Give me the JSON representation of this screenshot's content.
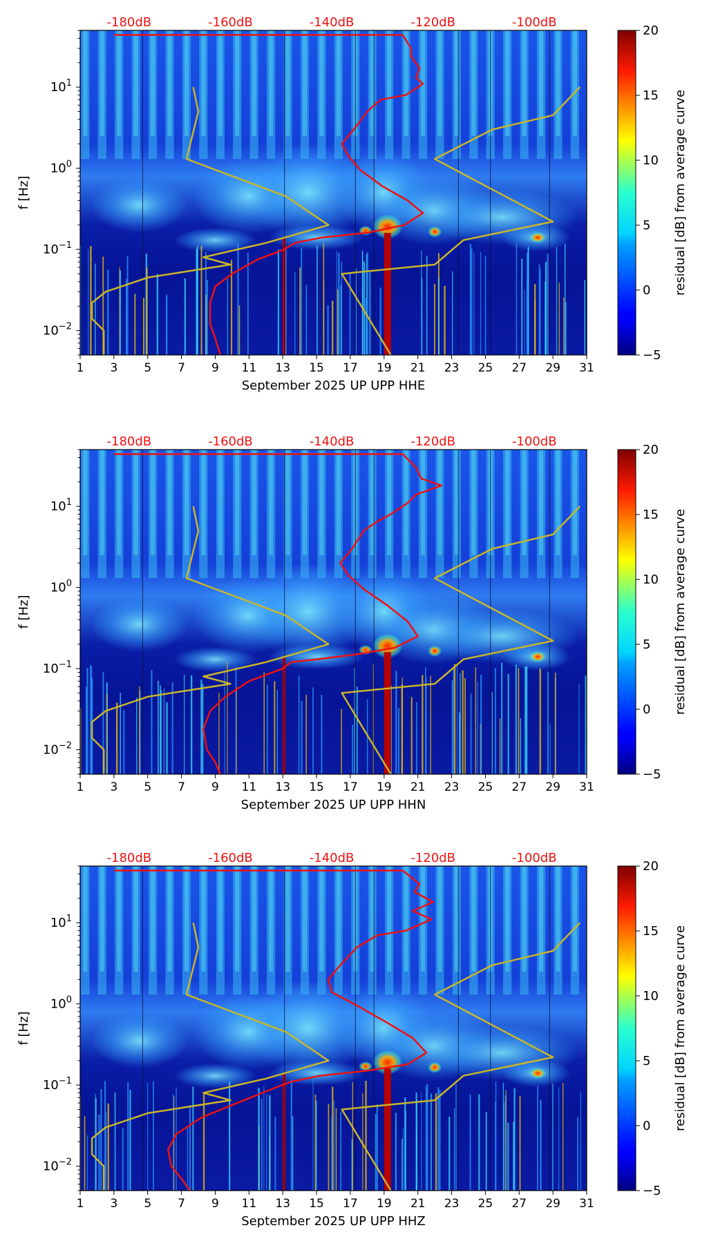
{
  "chart_data": [
    {
      "type": "heatmap",
      "title": "",
      "xlabel": "September 2025 UP UPP  HHE",
      "ylabel": "f [Hz]",
      "x_ticks": [
        1,
        3,
        5,
        7,
        9,
        11,
        13,
        15,
        17,
        19,
        21,
        23,
        25,
        27,
        29,
        31
      ],
      "xlim": [
        1,
        31
      ],
      "ylim_hz": [
        0.005,
        50
      ],
      "y_ticks": [
        {
          "value": 0.01,
          "base": "10",
          "exp": "−2"
        },
        {
          "value": 0.1,
          "base": "10",
          "exp": "−1"
        },
        {
          "value": 1,
          "base": "10",
          "exp": "0"
        },
        {
          "value": 10,
          "base": "10",
          "exp": "1"
        }
      ],
      "top_axis_labels": [
        {
          "label": "-180dB",
          "x": 3.9
        },
        {
          "label": "-160dB",
          "x": 9.9
        },
        {
          "label": "-140dB",
          "x": 15.9
        },
        {
          "label": "-120dB",
          "x": 21.9
        },
        {
          "label": "-100dB",
          "x": 27.9
        }
      ],
      "colorbar": {
        "label": "residual [dB] from average curve",
        "min": -5,
        "max": 20,
        "ticks": [
          -5,
          0,
          5,
          10,
          15,
          20
        ]
      },
      "series": [
        {
          "name": "mean PSD (red)",
          "color": "#ee1111",
          "x": [
            20.1,
            20.6,
            20.6,
            21.1,
            20.9,
            21.3,
            20.3,
            18.8,
            18.0,
            17.2,
            16.5,
            16.9,
            17.6,
            18.9,
            20.4,
            21.3,
            20.2,
            18.0,
            15.3,
            13.7,
            13.1,
            11.5,
            10.0,
            9.0,
            8.7,
            8.7,
            9.0,
            9.3
          ],
          "y": [
            44,
            30,
            24,
            17,
            13,
            11,
            8,
            7,
            5,
            3,
            2,
            1.4,
            0.95,
            0.6,
            0.4,
            0.28,
            0.2,
            0.16,
            0.14,
            0.12,
            0.1,
            0.075,
            0.05,
            0.035,
            0.022,
            0.012,
            0.008,
            0.005
          ]
        },
        {
          "name": "noise model (yellow)",
          "color": "#c9b52a",
          "x": [
            7.7,
            8.0,
            7.3,
            10.0,
            13.2,
            15.7,
            12.0,
            8.3,
            9.9,
            5.0,
            2.5,
            1.7,
            1.7,
            2.4,
            2.4
          ],
          "y": [
            10,
            5,
            1.3,
            0.8,
            0.45,
            0.2,
            0.12,
            0.08,
            0.065,
            0.045,
            0.03,
            0.022,
            0.014,
            0.01,
            0.005
          ]
        },
        {
          "name": "noise model (yellow) right",
          "color": "#c9b52a",
          "x": [
            19.4,
            16.5,
            22.0,
            23.7,
            29.0,
            22.0,
            25.4,
            29.0,
            30.6
          ],
          "y": [
            0.005,
            0.05,
            0.065,
            0.13,
            0.22,
            1.3,
            3,
            4.5,
            10
          ]
        }
      ]
    },
    {
      "type": "heatmap",
      "title": "",
      "xlabel": "September 2025 UP UPP  HHN",
      "ylabel": "f [Hz]",
      "x_ticks": [
        1,
        3,
        5,
        7,
        9,
        11,
        13,
        15,
        17,
        19,
        21,
        23,
        25,
        27,
        29,
        31
      ],
      "xlim": [
        1,
        31
      ],
      "ylim_hz": [
        0.005,
        50
      ],
      "y_ticks": [
        {
          "value": 0.01,
          "base": "10",
          "exp": "−2"
        },
        {
          "value": 0.1,
          "base": "10",
          "exp": "−1"
        },
        {
          "value": 1,
          "base": "10",
          "exp": "0"
        },
        {
          "value": 10,
          "base": "10",
          "exp": "1"
        }
      ],
      "top_axis_labels": [
        {
          "label": "-180dB",
          "x": 3.9
        },
        {
          "label": "-160dB",
          "x": 9.9
        },
        {
          "label": "-140dB",
          "x": 15.9
        },
        {
          "label": "-120dB",
          "x": 21.9
        },
        {
          "label": "-100dB",
          "x": 27.9
        }
      ],
      "colorbar": {
        "label": "residual [dB] from average curve",
        "min": -5,
        "max": 20,
        "ticks": [
          -5,
          0,
          5,
          10,
          15,
          20
        ]
      },
      "series": [
        {
          "name": "mean PSD (red)",
          "color": "#ee1111",
          "x": [
            20.1,
            20.9,
            21.2,
            22.4,
            20.9,
            20.4,
            19.4,
            18.6,
            17.8,
            17.1,
            16.4,
            16.9,
            17.8,
            19.2,
            20.4,
            21.0,
            19.6,
            17.4,
            15.0,
            13.5,
            13.0,
            11.0,
            9.6,
            8.7,
            8.3,
            8.5,
            9.0,
            9.3
          ],
          "y": [
            44,
            30,
            22,
            18,
            14,
            11,
            8,
            6.5,
            5,
            3,
            2,
            1.4,
            0.95,
            0.6,
            0.38,
            0.25,
            0.18,
            0.15,
            0.13,
            0.12,
            0.1,
            0.07,
            0.045,
            0.03,
            0.018,
            0.01,
            0.007,
            0.005
          ]
        },
        {
          "name": "noise model (yellow)",
          "color": "#c9b52a",
          "x": [
            7.7,
            8.0,
            7.3,
            10.0,
            13.2,
            15.7,
            12.0,
            8.3,
            9.9,
            5.0,
            2.5,
            1.7,
            1.7,
            2.4,
            2.4
          ],
          "y": [
            10,
            5,
            1.3,
            0.8,
            0.45,
            0.2,
            0.12,
            0.08,
            0.065,
            0.045,
            0.03,
            0.022,
            0.014,
            0.01,
            0.005
          ]
        },
        {
          "name": "noise model (yellow) right",
          "color": "#c9b52a",
          "x": [
            19.4,
            16.5,
            22.0,
            23.7,
            29.0,
            22.0,
            25.4,
            29.0,
            30.6
          ],
          "y": [
            0.005,
            0.05,
            0.065,
            0.13,
            0.22,
            1.3,
            3,
            4.5,
            10
          ]
        }
      ]
    },
    {
      "type": "heatmap",
      "title": "",
      "xlabel": "September 2025 UP UPP  HHZ",
      "ylabel": "f [Hz]",
      "x_ticks": [
        1,
        3,
        5,
        7,
        9,
        11,
        13,
        15,
        17,
        19,
        21,
        23,
        25,
        27,
        29,
        31
      ],
      "xlim": [
        1,
        31
      ],
      "ylim_hz": [
        0.005,
        50
      ],
      "y_ticks": [
        {
          "value": 0.01,
          "base": "10",
          "exp": "−2"
        },
        {
          "value": 0.1,
          "base": "10",
          "exp": "−1"
        },
        {
          "value": 1,
          "base": "10",
          "exp": "0"
        },
        {
          "value": 10,
          "base": "10",
          "exp": "1"
        }
      ],
      "top_axis_labels": [
        {
          "label": "-180dB",
          "x": 3.9
        },
        {
          "label": "-160dB",
          "x": 9.9
        },
        {
          "label": "-140dB",
          "x": 15.9
        },
        {
          "label": "-120dB",
          "x": 21.9
        },
        {
          "label": "-100dB",
          "x": 27.9
        }
      ],
      "colorbar": {
        "label": "residual [dB] from average curve",
        "min": -5,
        "max": 20,
        "ticks": [
          -5,
          0,
          5,
          10,
          15,
          20
        ]
      },
      "series": [
        {
          "name": "mean PSD (red)",
          "color": "#ee1111",
          "x": [
            20.1,
            21.1,
            20.8,
            21.9,
            20.7,
            21.8,
            20.3,
            18.6,
            17.4,
            16.4,
            15.7,
            15.9,
            17.4,
            19.1,
            20.7,
            21.5,
            20.4,
            18.0,
            15.2,
            13.5,
            12.4,
            10.3,
            8.2,
            6.7,
            6.2,
            6.4,
            7.0,
            7.5
          ],
          "y": [
            44,
            30,
            24,
            18,
            14,
            11,
            8,
            7,
            5,
            3,
            2,
            1.4,
            0.95,
            0.6,
            0.38,
            0.25,
            0.18,
            0.15,
            0.13,
            0.11,
            0.09,
            0.06,
            0.04,
            0.025,
            0.016,
            0.01,
            0.007,
            0.005
          ]
        },
        {
          "name": "noise model (yellow)",
          "color": "#c9b52a",
          "x": [
            7.7,
            8.0,
            7.3,
            10.0,
            13.2,
            15.7,
            12.0,
            8.3,
            9.9,
            5.0,
            2.5,
            1.7,
            1.7,
            2.4,
            2.4
          ],
          "y": [
            10,
            5,
            1.3,
            0.8,
            0.45,
            0.2,
            0.12,
            0.08,
            0.065,
            0.045,
            0.03,
            0.022,
            0.014,
            0.01,
            0.005
          ]
        },
        {
          "name": "noise model (yellow) right",
          "color": "#c9b52a",
          "x": [
            19.4,
            16.5,
            22.0,
            23.7,
            29.0,
            22.0,
            25.4,
            29.0,
            30.6
          ],
          "y": [
            0.005,
            0.05,
            0.065,
            0.13,
            0.22,
            1.3,
            3,
            4.5,
            10
          ]
        }
      ]
    }
  ]
}
